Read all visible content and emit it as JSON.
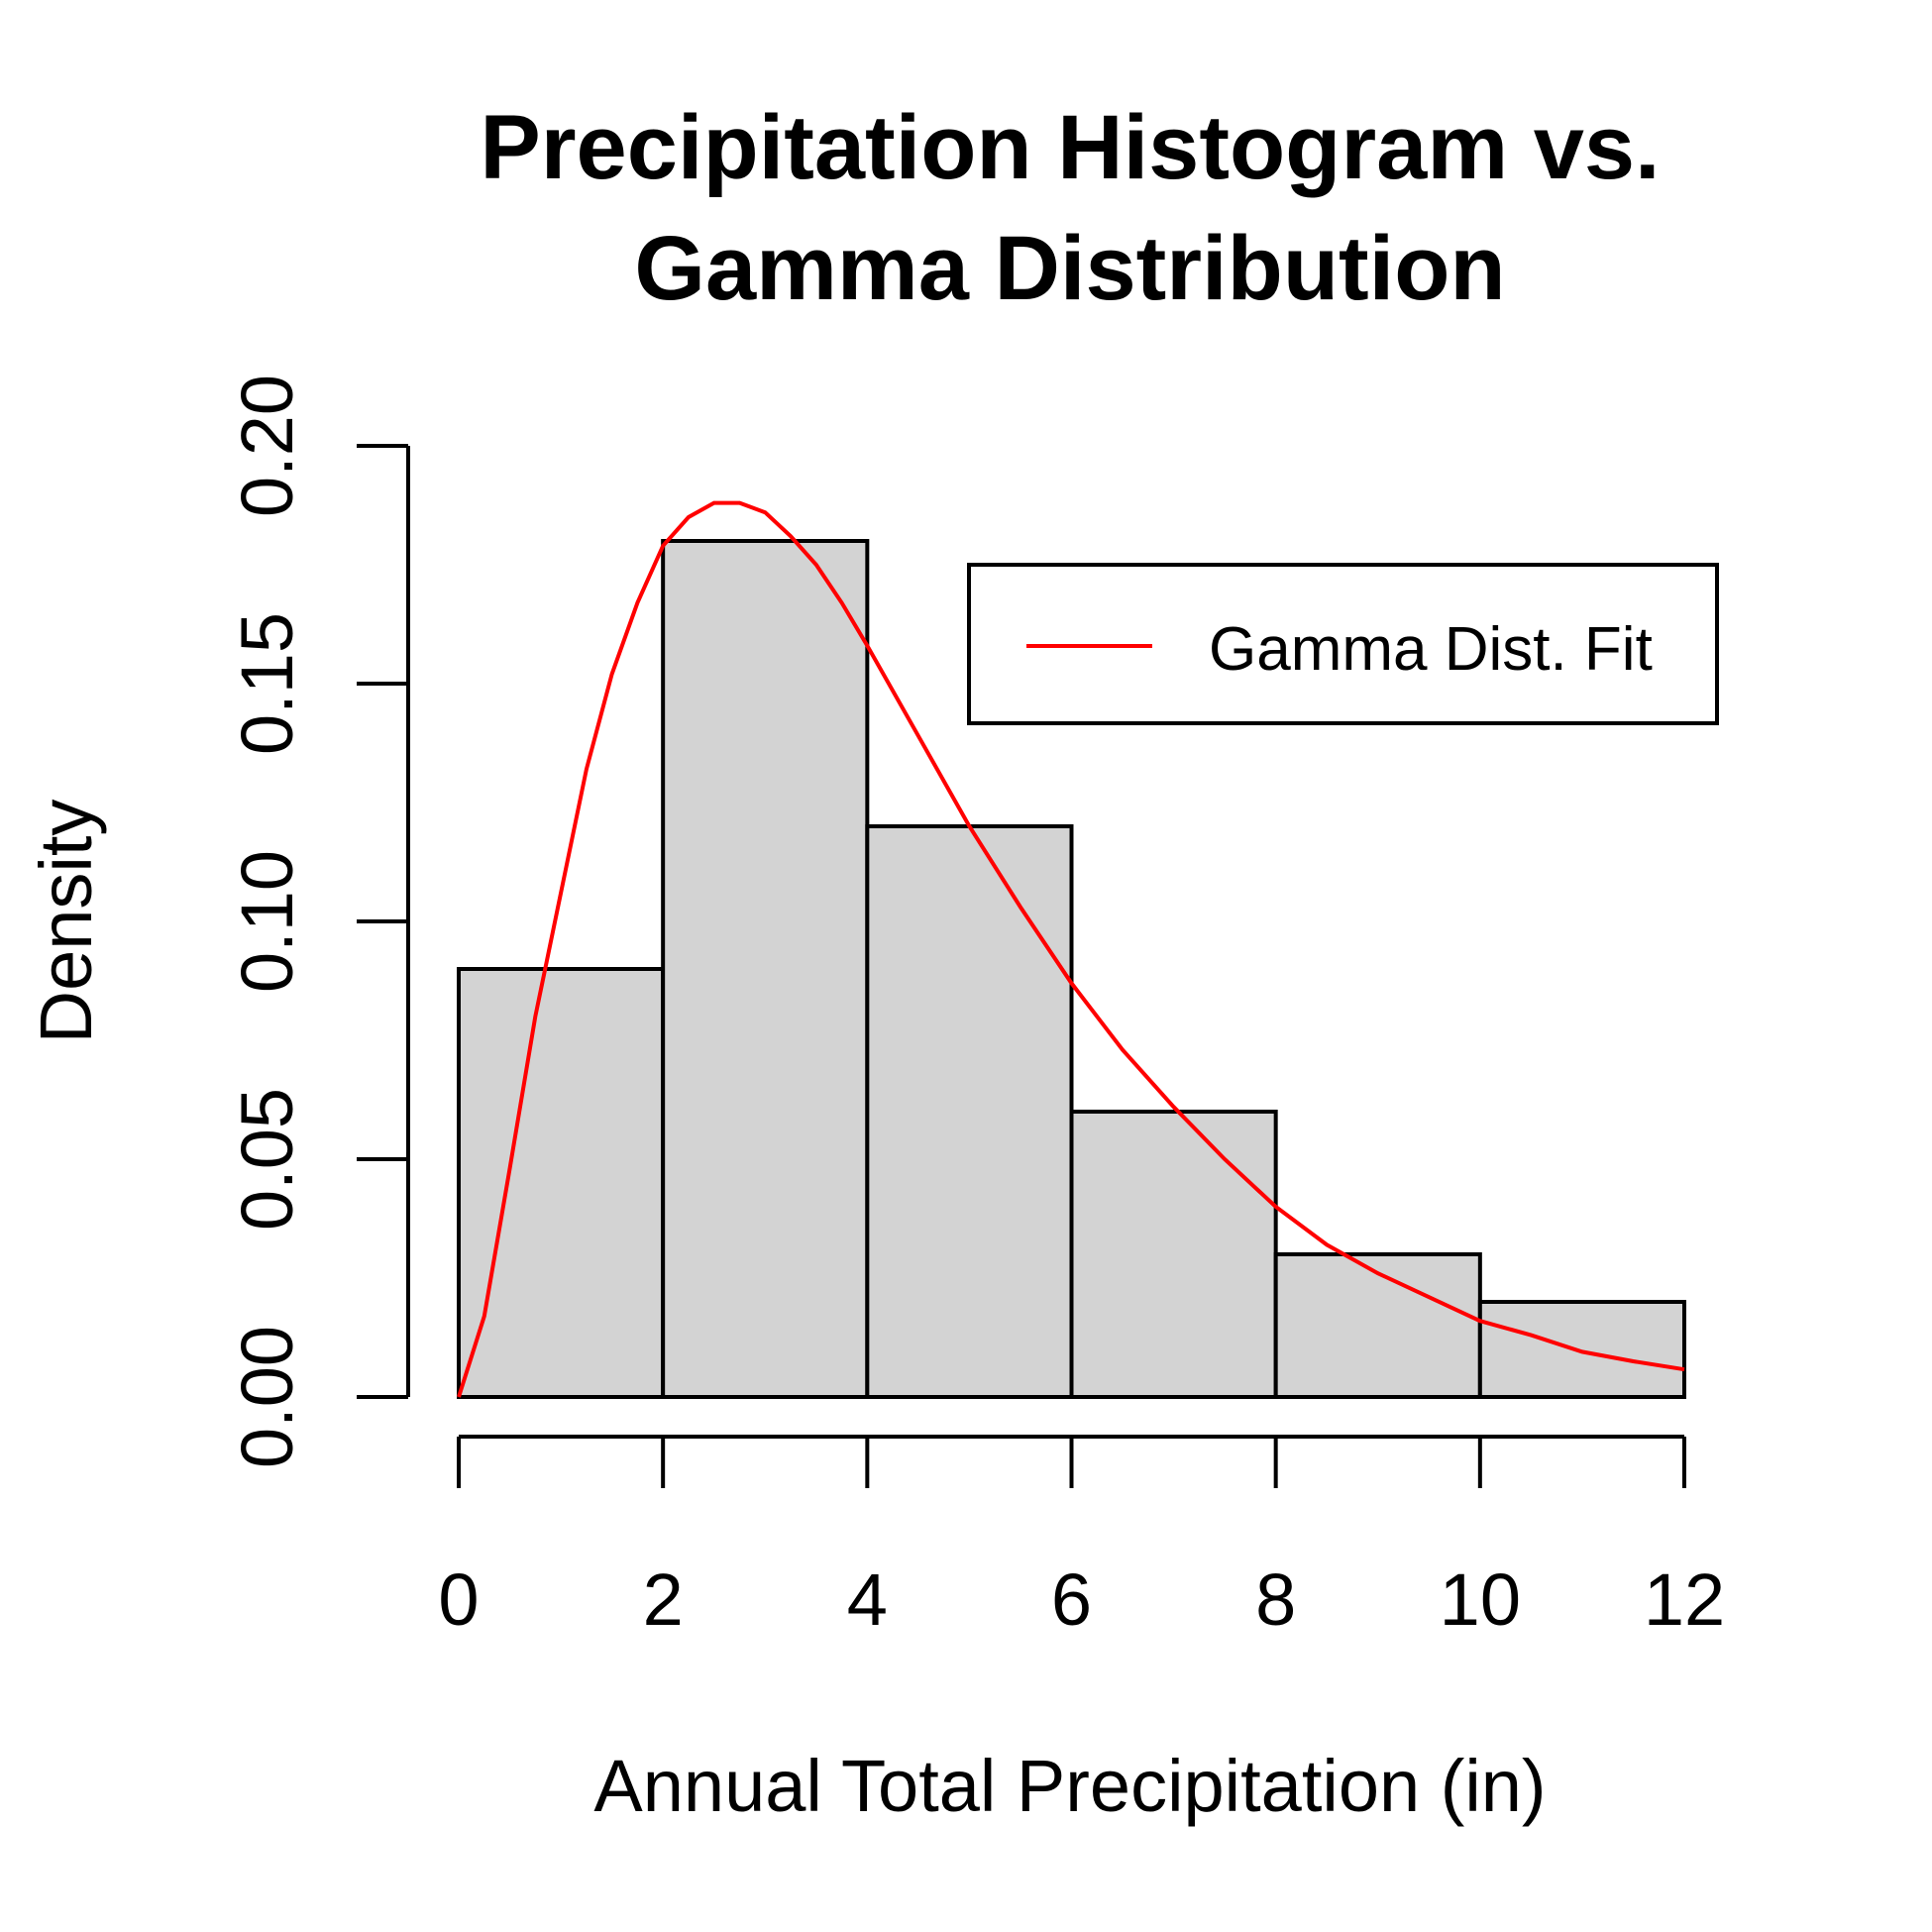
{
  "chart_data": {
    "type": "bar",
    "title_lines": [
      "Precipitation Histogram vs.",
      "Gamma Distribution"
    ],
    "xlabel": "Annual Total Precipitation (in)",
    "ylabel": "Density",
    "xlim": [
      0,
      12
    ],
    "ylim": [
      0,
      0.2
    ],
    "x_ticks": [
      "0",
      "2",
      "4",
      "6",
      "8",
      "10",
      "12"
    ],
    "y_ticks": [
      "0.00",
      "0.05",
      "0.10",
      "0.15",
      "0.20"
    ],
    "bins": [
      {
        "x0": 0,
        "x1": 2,
        "density": 0.09
      },
      {
        "x0": 2,
        "x1": 4,
        "density": 0.18
      },
      {
        "x0": 4,
        "x1": 6,
        "density": 0.12
      },
      {
        "x0": 6,
        "x1": 8,
        "density": 0.06
      },
      {
        "x0": 8,
        "x1": 10,
        "density": 0.03
      },
      {
        "x0": 10,
        "x1": 12,
        "density": 0.02
      }
    ],
    "bar_color": "#d3d3d3",
    "curve": {
      "name": "Gamma Dist. Fit",
      "color": "#ff0000",
      "points": [
        [
          0,
          0
        ],
        [
          0.25,
          0.017
        ],
        [
          0.5,
          0.048
        ],
        [
          0.75,
          0.08
        ],
        [
          1.0,
          0.106
        ],
        [
          1.25,
          0.132
        ],
        [
          1.5,
          0.152
        ],
        [
          1.75,
          0.167
        ],
        [
          2.0,
          0.179
        ],
        [
          2.25,
          0.185
        ],
        [
          2.5,
          0.188
        ],
        [
          2.75,
          0.188
        ],
        [
          3.0,
          0.186
        ],
        [
          3.25,
          0.181
        ],
        [
          3.5,
          0.175
        ],
        [
          3.75,
          0.167
        ],
        [
          4.0,
          0.158
        ],
        [
          4.5,
          0.139
        ],
        [
          5.0,
          0.12
        ],
        [
          5.5,
          0.103
        ],
        [
          6.0,
          0.087
        ],
        [
          6.5,
          0.073
        ],
        [
          7.0,
          0.061
        ],
        [
          7.5,
          0.05
        ],
        [
          8.0,
          0.04
        ],
        [
          8.5,
          0.032
        ],
        [
          9.0,
          0.026
        ],
        [
          9.5,
          0.021
        ],
        [
          10.0,
          0.016
        ],
        [
          10.5,
          0.013
        ],
        [
          11.0,
          0.0095
        ],
        [
          11.5,
          0.0075
        ],
        [
          12.0,
          0.0058
        ]
      ]
    },
    "legend": {
      "position": "top-right",
      "entries": [
        "Gamma Dist. Fit"
      ]
    }
  }
}
